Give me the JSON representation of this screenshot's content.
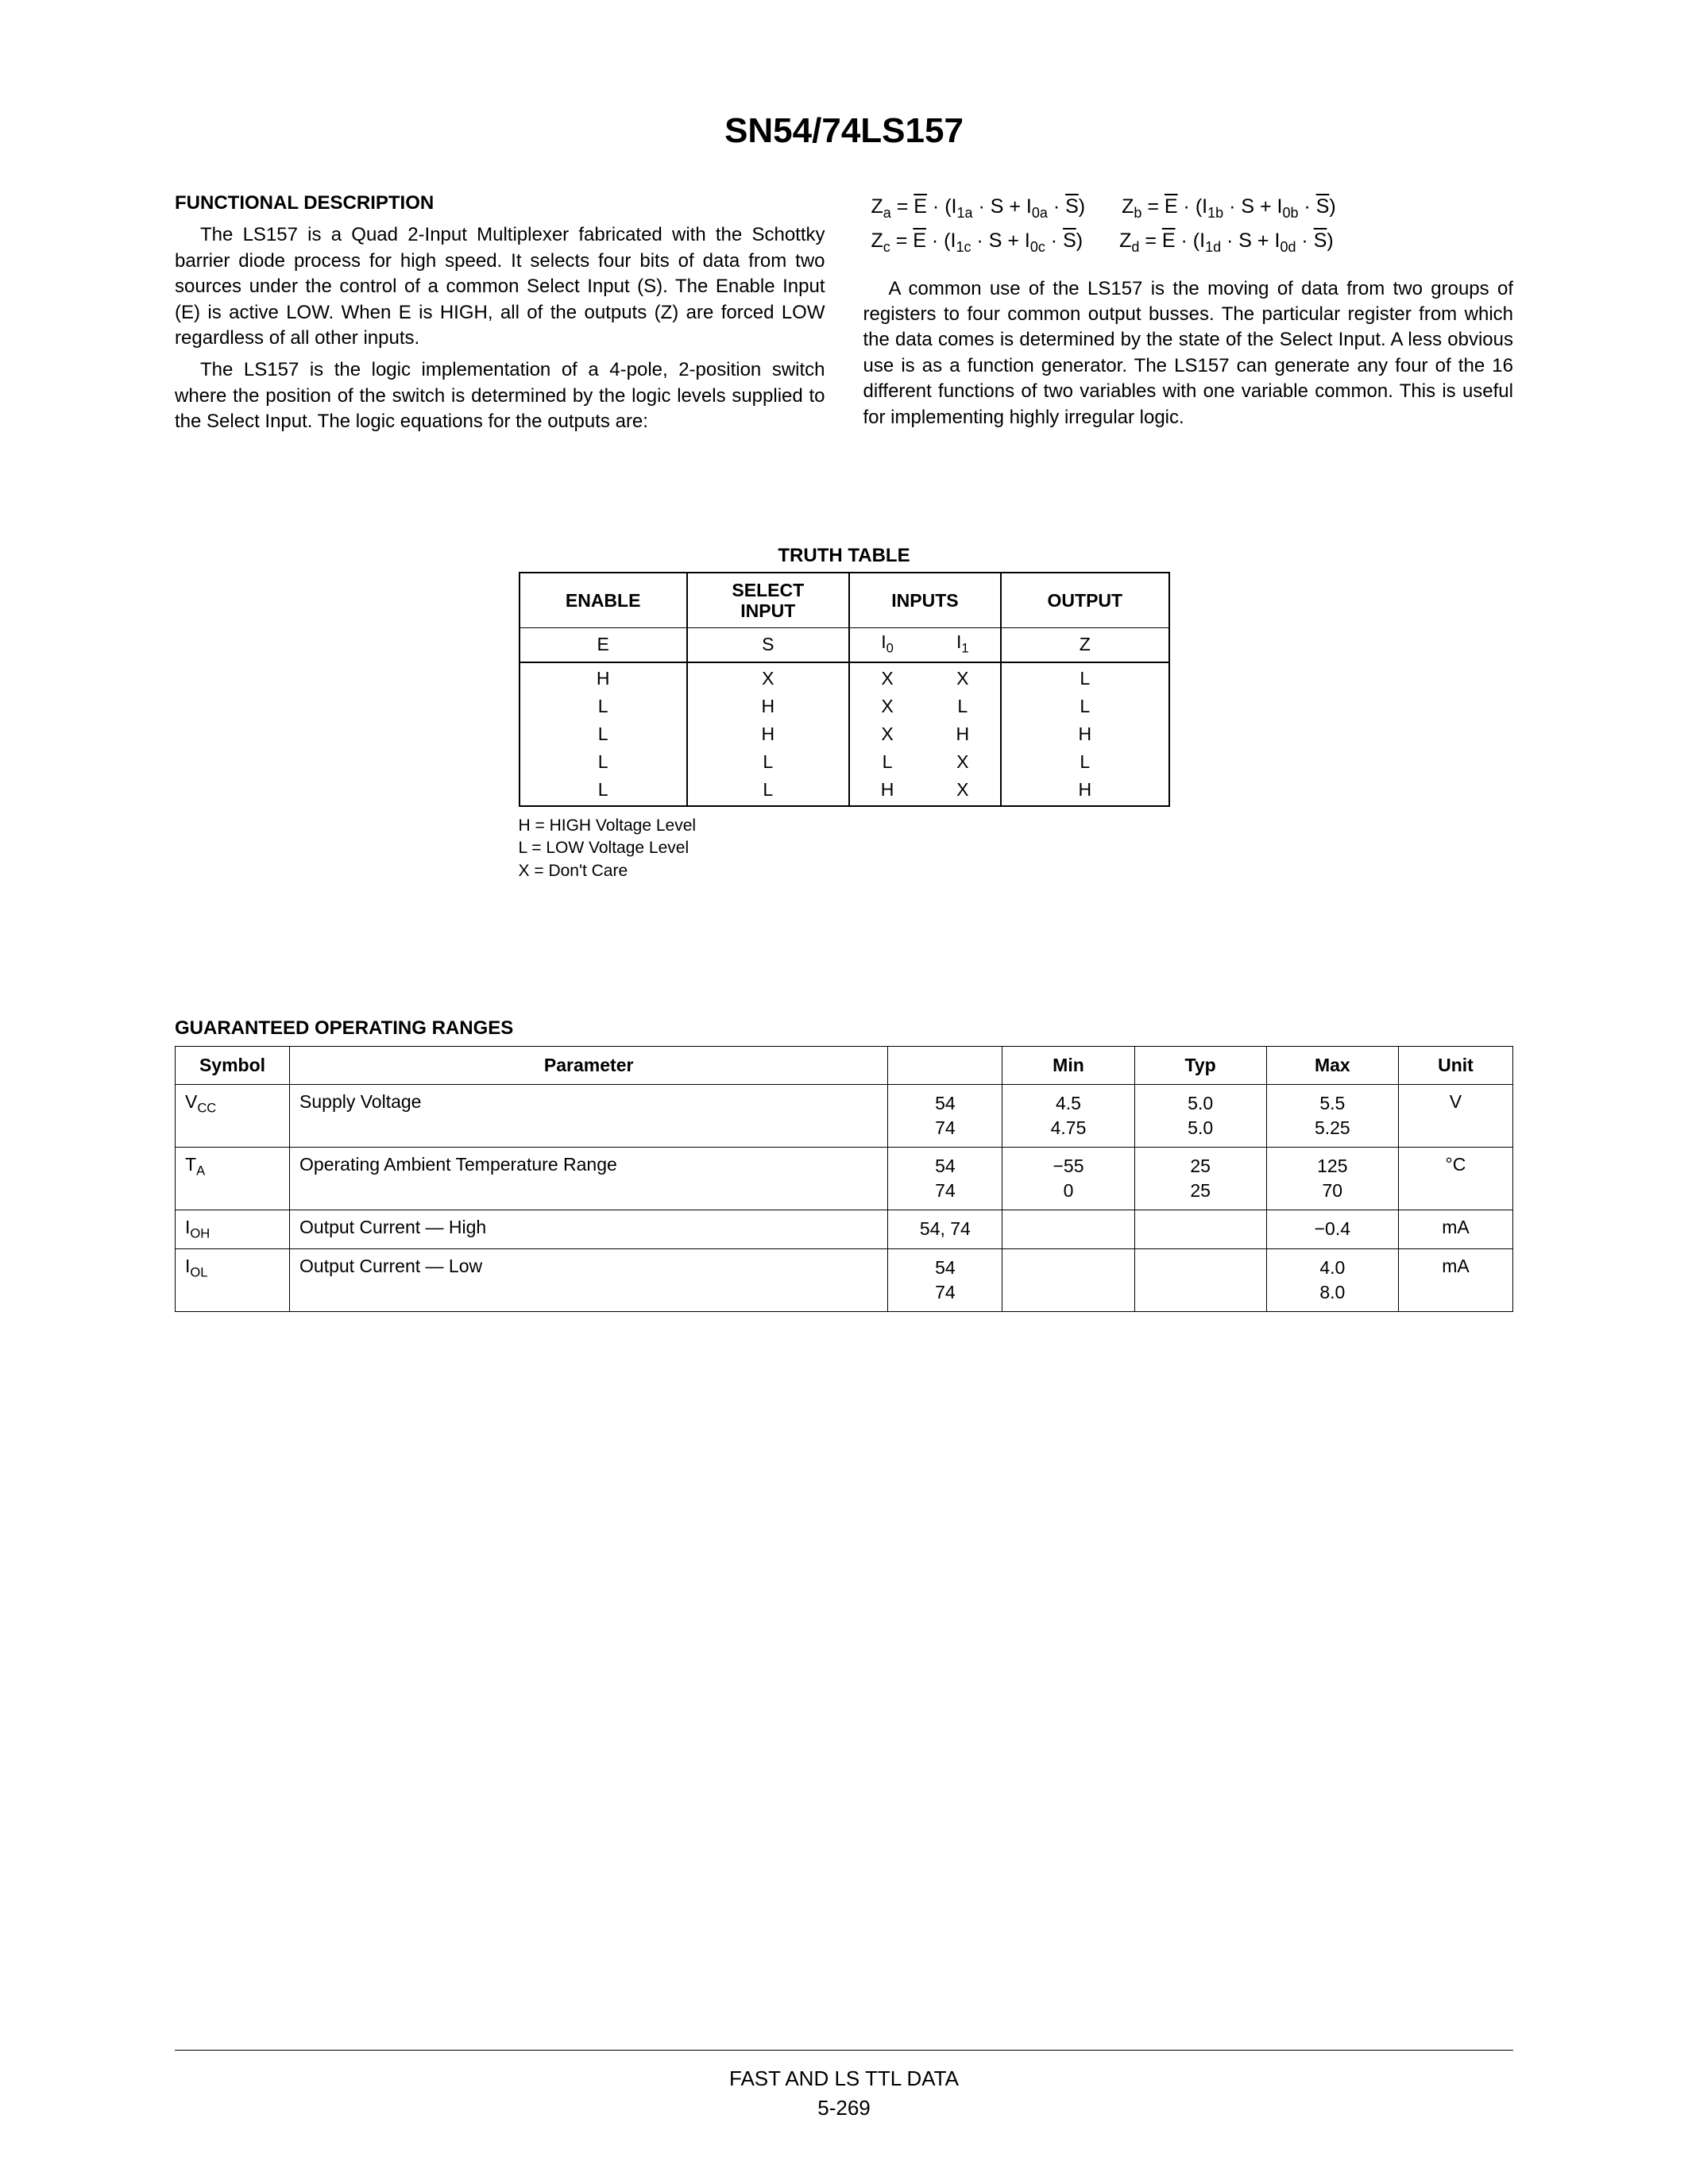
{
  "title": "SN54/74LS157",
  "func_desc_head": "FUNCTIONAL DESCRIPTION",
  "para1": "The LS157 is a Quad 2-Input Multiplexer fabricated with the Schottky barrier diode process for high speed. It selects four bits of data from two sources under the control of a common Select Input (S). The Enable Input (E) is active LOW. When E is HIGH, all of the outputs (Z) are forced LOW regardless of all other inputs.",
  "para2": "The LS157 is the logic implementation of a 4-pole, 2-position switch where the position of the switch is determined by the logic levels supplied to the Select Input. The logic equations for the outputs are:",
  "eq": {
    "za_l": "Z",
    "za_sub": "a",
    "za_eq": " = ",
    "zb_sub": "b",
    "zc_sub": "c",
    "zd_sub": "d",
    "i1a": "1a",
    "i0a": "0a",
    "i1b": "1b",
    "i0b": "0b",
    "i1c": "1c",
    "i0c": "0c",
    "i1d": "1d",
    "i0d": "0d",
    "E": "E",
    "I": "I",
    "S": "S",
    "dot": " · ",
    "plus": " + ",
    "lp": "(",
    "rp": ")"
  },
  "para3": "A common use of the LS157 is the moving of data from two groups of registers to four common output busses. The particular register from which the data comes is determined by the state of the Select Input. A less obvious use is as a function generator. The LS157 can generate any four of the 16 different functions of two variables with one variable common. This is useful for implementing highly irregular logic.",
  "truth": {
    "title": "TRUTH TABLE",
    "headers": {
      "enable": "ENABLE",
      "select": "SELECT INPUT",
      "inputs": "INPUTS",
      "output": "OUTPUT",
      "E": "E",
      "S": "S",
      "I0": "I",
      "I0sub": "0",
      "I1": "I",
      "I1sub": "1",
      "Z": "Z"
    },
    "rows": [
      [
        "H",
        "X",
        "X",
        "X",
        "L"
      ],
      [
        "L",
        "H",
        "X",
        "L",
        "L"
      ],
      [
        "L",
        "H",
        "X",
        "H",
        "H"
      ],
      [
        "L",
        "L",
        "L",
        "X",
        "L"
      ],
      [
        "L",
        "L",
        "H",
        "X",
        "H"
      ]
    ],
    "legend": [
      "H = HIGH Voltage Level",
      "L = LOW Voltage Level",
      "X = Don't Care"
    ]
  },
  "ranges": {
    "title": "GUARANTEED OPERATING RANGES",
    "headers": [
      "Symbol",
      "Parameter",
      "",
      "Min",
      "Typ",
      "Max",
      "Unit"
    ],
    "rows": [
      {
        "sym": "V",
        "symsub": "CC",
        "param": "Supply Voltage",
        "dev": "54\n74",
        "min": "4.5\n4.75",
        "typ": "5.0\n5.0",
        "max": "5.5\n5.25",
        "unit": "V"
      },
      {
        "sym": "T",
        "symsub": "A",
        "param": "Operating Ambient Temperature Range",
        "dev": "54\n74",
        "min": "−55\n0",
        "typ": "25\n25",
        "max": "125\n70",
        "unit": "°C"
      },
      {
        "sym": "I",
        "symsub": "OH",
        "param": "Output Current — High",
        "dev": "54, 74",
        "min": "",
        "typ": "",
        "max": "−0.4",
        "unit": "mA"
      },
      {
        "sym": "I",
        "symsub": "OL",
        "param": "Output Current — Low",
        "dev": "54\n74",
        "min": "",
        "typ": "",
        "max": "4.0\n8.0",
        "unit": "mA"
      }
    ]
  },
  "footer1": "FAST AND LS TTL DATA",
  "footer2": "5-269"
}
